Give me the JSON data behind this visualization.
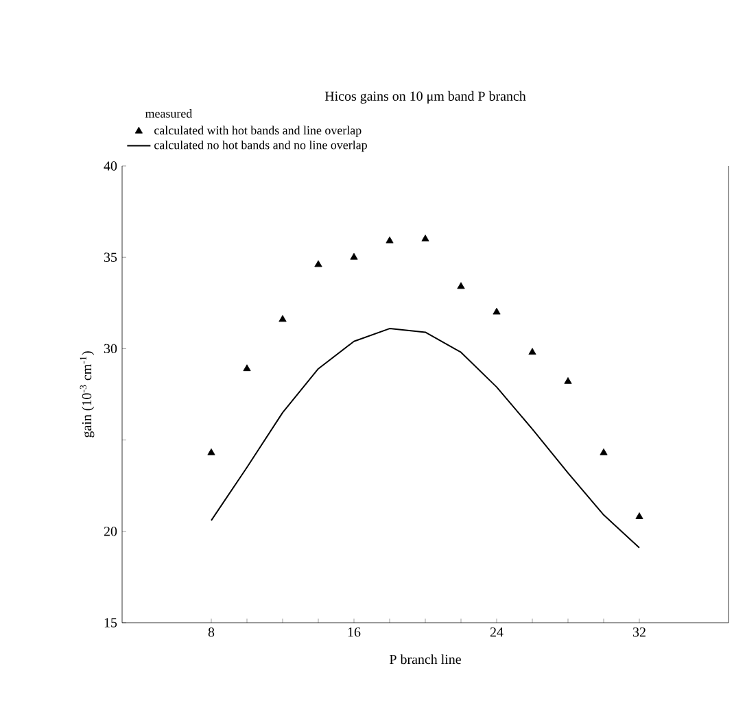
{
  "chart_data": {
    "type": "scatter",
    "title": "Hicos gains on 10 μm band P branch",
    "xlabel": "P branch line",
    "ylabel": "gain (10$^{-3}$ cm$^{-1}$)",
    "annotations": [
      "measured"
    ],
    "xlim": [
      3,
      37
    ],
    "ylim": [
      15,
      40
    ],
    "xticks": [
      8,
      {
        "value": 10,
        "label": null
      },
      {
        "value": 12,
        "label": null
      },
      {
        "value": 14,
        "label": null
      },
      16,
      {
        "value": 18,
        "label": null
      },
      {
        "value": 20,
        "label": null
      },
      {
        "value": 22,
        "label": null
      },
      24,
      {
        "value": 26,
        "label": null
      },
      {
        "value": 28,
        "label": null
      },
      {
        "value": 30,
        "label": null
      },
      32
    ],
    "yticks": [
      15,
      20,
      {
        "value": 25,
        "label": null
      },
      30,
      35,
      40
    ],
    "x": [
      8,
      10,
      12,
      14,
      16,
      18,
      20,
      22,
      24,
      26,
      28,
      30,
      32
    ],
    "legend": "top",
    "series": [
      {
        "name": "calculated with hot bands and line overlap",
        "marker": "triangle",
        "color": "#000000",
        "values": [
          24.3,
          28.9,
          31.6,
          34.6,
          35.0,
          35.9,
          36.0,
          33.4,
          32.0,
          29.8,
          28.2,
          24.3,
          20.8
        ]
      },
      {
        "name": "calculated no hot bands and no line overlap",
        "type": "line",
        "marker": "none",
        "line_style": "solid",
        "color": "#000000",
        "values": [
          20.6,
          23.5,
          26.5,
          28.9,
          30.4,
          31.1,
          30.9,
          29.8,
          27.9,
          25.6,
          23.2,
          20.9,
          19.1
        ]
      }
    ]
  }
}
